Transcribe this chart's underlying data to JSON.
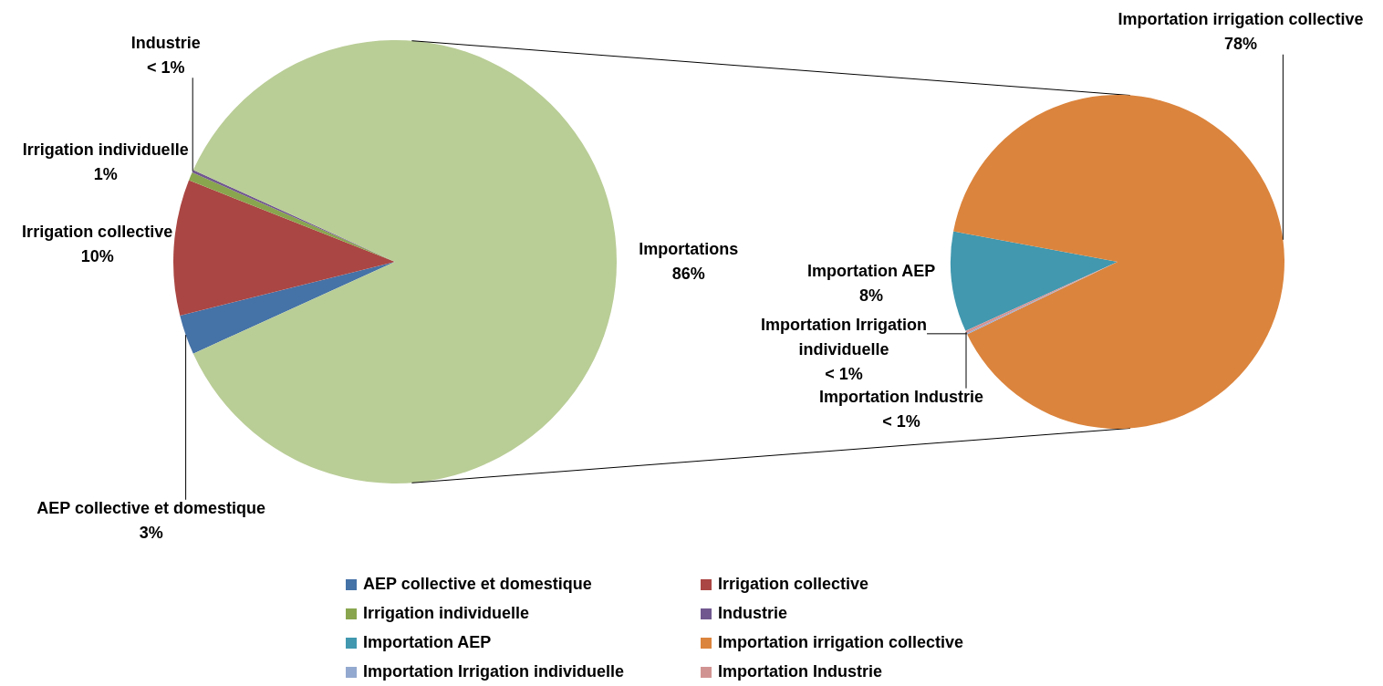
{
  "chart_data": [
    {
      "type": "pie",
      "categories": [
        "AEP collective et domestique",
        "Irrigation collective",
        "Irrigation individuelle",
        "Industrie",
        "Importations"
      ],
      "values": [
        2.9,
        9.9,
        0.6,
        0.2,
        86.4
      ],
      "colors": [
        "#4572a7",
        "#aa4643",
        "#89a54e",
        "#71588f",
        "#b9cd96"
      ],
      "value_labels": [
        "3%",
        "10%",
        "1%",
        "< 1%",
        "86%"
      ],
      "legend": "bottom"
    },
    {
      "type": "pie",
      "categories": [
        "Importation AEP",
        "Importation irrigation collective",
        "Importation Irrigation individuelle",
        "Importation Industrie"
      ],
      "values": [
        8.4,
        77.7,
        0.1,
        0.2
      ],
      "colors": [
        "#4198af",
        "#db843d",
        "#93a9cf",
        "#d19392"
      ],
      "value_labels": [
        "8%",
        "78%",
        "< 1%",
        "< 1%"
      ],
      "legend": "bottom"
    }
  ]
}
